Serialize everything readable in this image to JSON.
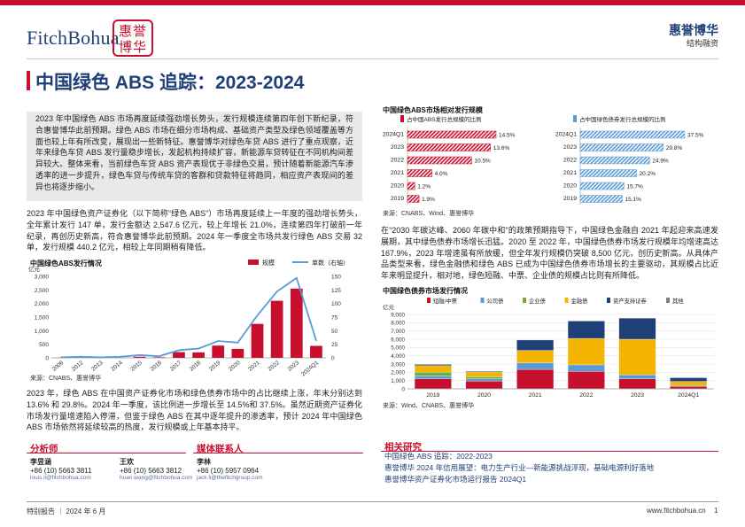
{
  "header": {
    "logo_text": "FitchBohua",
    "seal_text": "惠誉博华",
    "brand_name": "惠誉博华",
    "brand_sub": "结构融资"
  },
  "title": "中国绿色 ABS 追踪：2023-2024",
  "summary": "2023 年中国绿色 ABS 市场再度延续强劲增长势头，发行规模连续第四年创下新纪录，符合惠誉博华此前预期。绿色 ABS 市场在细分市场构成、基础资产类型及绿色领域覆盖等方面也较上年有所改变，展现出一些新特征。惠誉博华对绿色车贷 ABS 进行了重点观察，近年来绿色车贷 ABS 发行量稳步增长，发起机构持续扩容，新能源车贷转征在不同机构间差异较大。整体来看，当前绿色车贷 ABS 资产表现优于非绿色交易，预计随着新能源汽车渗透率的进一步提升，绿色车贷与传统车贷的客群和贷款特征将趋同，相应资产表现间的差异也将逐步缩小。",
  "left_para_1": "2023 年中国绿色资产证券化（以下简称“绿色 ABS”）市场再度延续上一年度的强劲增长势头，全年累计发行 147 单，发行金额达 2,547.6 亿元，较上年增长 21.0%，连续第四年打破前一年纪录，再创历史新高，符合惠誉博华此前预期。2024 年一季度全市场共发行绿色 ABS 交易 32 单，发行规模 440.2 亿元，相较上年同期稍有降低。",
  "left_para_2": "2023 年，绿色 ABS 在中国资产证券化市场和绿色债券市场中的占比继续上涨，年末分别达到 13.6% 和 29.8%。2024 年一季度，该比例进一步增长至 14.5%和 37.5%。虽然近期资产证券化市场发行量增速陷入停滞，但鉴于绿色 ABS 在其中逐年提升的渗透率，预计 2024 年中国绿色 ABS 市场依然将延续较高的热度，发行规模或上年基本持平。",
  "right_para": "在“2030 年碳达峰、2060 年碳中和”的政策预期指导下，中国绿色金融自 2021 年起迎来高速发展期，其中绿色债券市场增长迅猛。2020 至 2022 年，中国绿色债券市场发行规模年均增速高达 167.9%，2023 年增速虽有所放缓，但全年发行规模仍突破 8,500 亿元，创历史新高。从具体产品类型来看，绿色金融债和绿色 ABS 已成为中国绿色债券市场增长的主要驱动，其规模占比近年来明显提升，相对地，绿色短融、中票、企业债的规模占比则有所降低。",
  "chart_issuance": {
    "type": "bar",
    "title": "中国绿色ABS发行情况",
    "ylabel_left": "亿元",
    "legend": [
      "规模",
      "单数（右轴）"
    ],
    "categories": [
      "2006",
      "2012",
      "2013",
      "2014",
      "2015",
      "2016",
      "2017",
      "2018",
      "2019",
      "2020",
      "2021",
      "2022",
      "2023",
      "2024Q1"
    ],
    "values": [
      5,
      3,
      0,
      0,
      40,
      20,
      210,
      200,
      450,
      330,
      1250,
      2100,
      2548,
      440
    ],
    "series_line": [
      1,
      2,
      1,
      2,
      5,
      3,
      14,
      17,
      31,
      28,
      78,
      122,
      147,
      32
    ],
    "ylim_left": [
      0,
      3000
    ],
    "yticks_left": [
      "0",
      "500",
      "1,000",
      "1,500",
      "2,000",
      "2,500",
      "3,000"
    ],
    "ylim_right": [
      0,
      150
    ],
    "yticks_right": [
      "0",
      "25",
      "50",
      "75",
      "100",
      "125",
      "150"
    ],
    "bar_color": "#c8102e",
    "line_color": "#5b9bd5",
    "source": "来源：CNABS、惠誉博华"
  },
  "chart_share": {
    "type": "bar",
    "title": "中国绿色ABS市场相对发行规模",
    "left_legend": "占中国ABS发行总规模的比例",
    "right_legend": "占中国绿色债券发行总规模的比例",
    "categories": [
      "2024Q1",
      "2023",
      "2022",
      "2021",
      "2020",
      "2019"
    ],
    "left_values": [
      14.5,
      13.6,
      10.5,
      4.0,
      1.2,
      1.9
    ],
    "left_labels": [
      "14.5%",
      "13.6%",
      "10.5%",
      "4.0%",
      "1.2%",
      "1.9%"
    ],
    "right_values": [
      37.5,
      29.8,
      24.9,
      20.2,
      15.7,
      15.1
    ],
    "right_labels": [
      "37.5%",
      "29.8%",
      "24.9%",
      "20.2%",
      "15.7%",
      "15.1%"
    ],
    "left_color": "#c8102e",
    "right_color": "#5b9bd5",
    "source": "来源：CNABS、Wind、惠誉博华"
  },
  "chart_green_bond": {
    "type": "bar",
    "title": "中国绿色债券市场发行情况",
    "ylabel": "亿元",
    "categories": [
      "2019",
      "2020",
      "2021",
      "2022",
      "2023",
      "2024Q1"
    ],
    "series": [
      {
        "name": "短融/中票",
        "color": "#c8102e",
        "values": [
          1200,
          950,
          2350,
          2100,
          1200,
          300
        ]
      },
      {
        "name": "公司债",
        "color": "#5b9bd5",
        "values": [
          350,
          250,
          800,
          800,
          500,
          100
        ]
      },
      {
        "name": "企业债",
        "color": "#70ad47",
        "values": [
          450,
          250,
          0,
          0,
          0,
          0
        ]
      },
      {
        "name": "金融债",
        "color": "#f5b400",
        "values": [
          800,
          550,
          1500,
          3200,
          4300,
          500
        ]
      },
      {
        "name": "资产支持证券",
        "color": "#1f3f77",
        "values": [
          150,
          100,
          1250,
          2100,
          2548,
          440
        ]
      },
      {
        "name": "其他",
        "color": "#7f7f7f",
        "values": [
          0,
          0,
          0,
          0,
          0,
          0
        ]
      }
    ],
    "ylim": [
      0,
      9000
    ],
    "yticks": [
      "0",
      "1,000",
      "2,000",
      "3,000",
      "4,000",
      "5,000",
      "6,000",
      "7,000",
      "8,000",
      "9,000"
    ],
    "source": "来源：Wind、CNABS、惠誉博华"
  },
  "analysts": {
    "heading": "分析师",
    "people": [
      {
        "name": "李昱涵",
        "phone": "+86 (10) 5663 3811",
        "email": "louis.li@fitchbohua.com"
      },
      {
        "name": "王欢",
        "phone": "+86 (10) 5663 3812",
        "email": "huan.wang@fitchbohua.com"
      }
    ]
  },
  "media": {
    "heading": "媒体联系人",
    "name": "李林",
    "phone": "+86 (10) 5957 0964",
    "email": "jack.li@thefitchgroup.com"
  },
  "related": {
    "heading": "相关研究",
    "items": [
      "中国绿色 ABS 追踪：2022-2023",
      "惠誉博华 2024 年信用展望：电力生产行业—新能源挑战浮现，基础电源利好落地",
      "惠誉博华资产证券化市场运行报告 2024Q1"
    ]
  },
  "footer": {
    "left": "特别报告 ｜ 2024 年 6 月",
    "url": "www.fitchbohua.cn",
    "page": "1"
  }
}
